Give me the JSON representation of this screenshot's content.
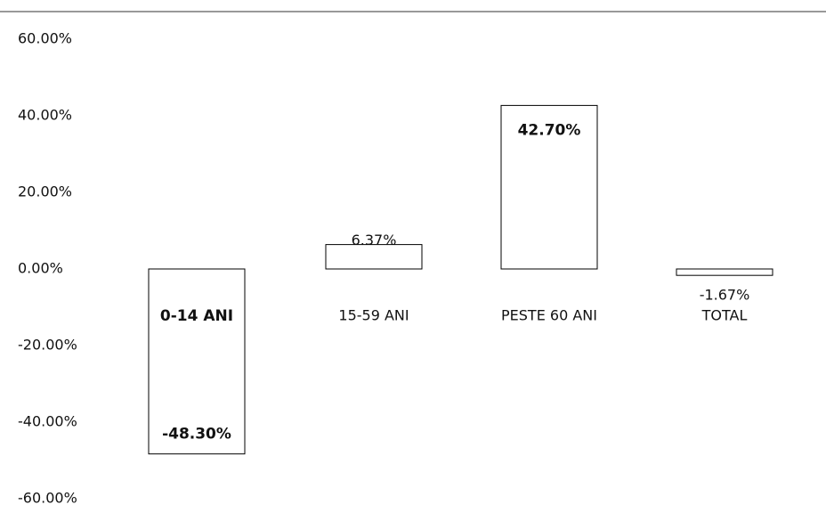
{
  "chart_data": {
    "type": "bar",
    "categories": [
      "0-14 ANI",
      "15-59 ANI",
      "PESTE 60 ANI",
      "TOTAL"
    ],
    "values": [
      -48.3,
      6.37,
      42.7,
      -1.67
    ],
    "value_labels": [
      "-48.30%",
      "6.37%",
      "42.70%",
      "-1.67%"
    ],
    "color": "#000000",
    "ylim": [
      -60,
      60
    ],
    "yticks": [
      {
        "value": -60,
        "label": "-60.00%"
      },
      {
        "value": -40,
        "label": "-40.00%"
      },
      {
        "value": -20,
        "label": "-20.00%"
      },
      {
        "value": 0,
        "label": "0.00%"
      },
      {
        "value": 20,
        "label": "20.00%"
      },
      {
        "value": 40,
        "label": "40.00%"
      },
      {
        "value": 60,
        "label": "60.00%"
      }
    ],
    "grid": false
  }
}
